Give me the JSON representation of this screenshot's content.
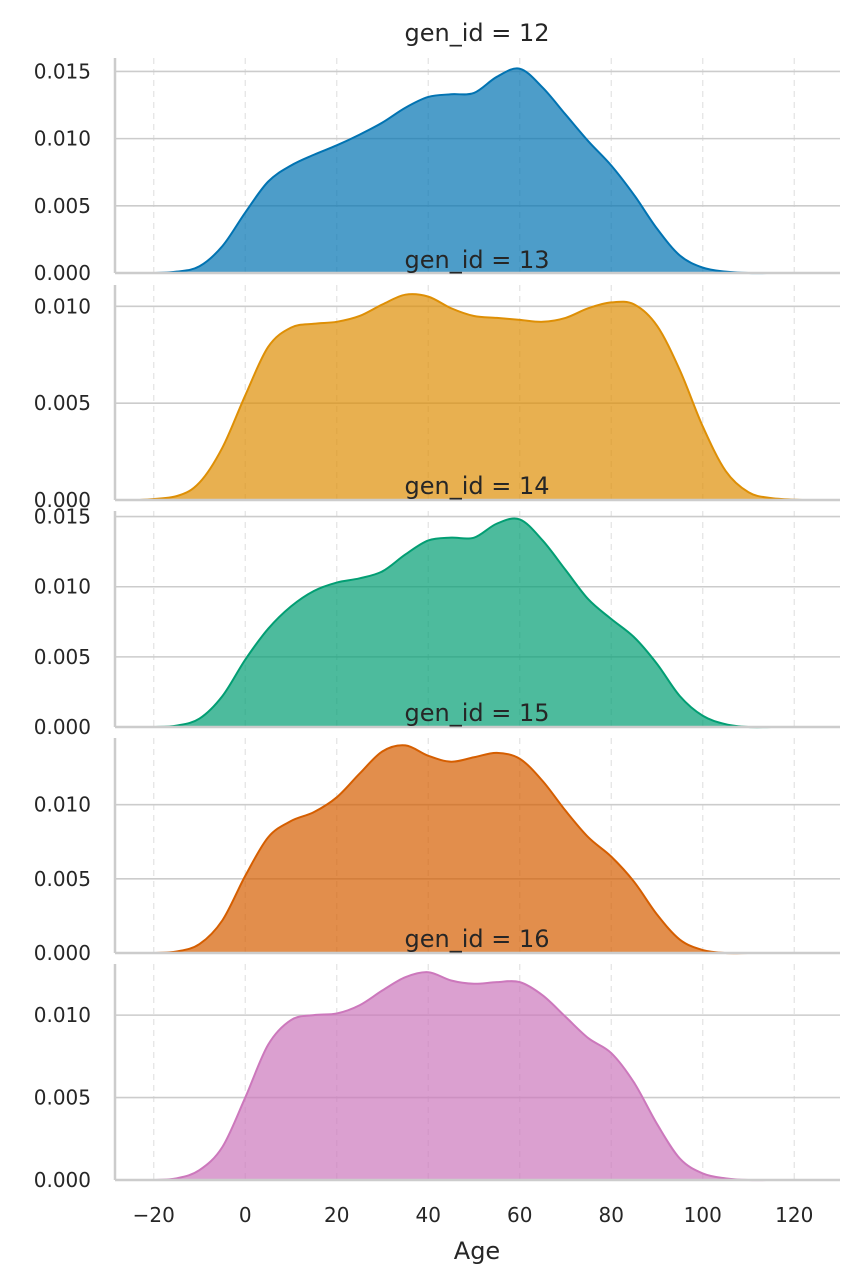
{
  "chart_data": {
    "type": "area",
    "xlabel": "Age",
    "ylabel": "",
    "xlim": [
      -30,
      130
    ],
    "x_ticks": [
      -20,
      0,
      20,
      40,
      60,
      80,
      100,
      120
    ],
    "x_tick_labels": [
      "−20",
      "0",
      "20",
      "40",
      "60",
      "80",
      "100",
      "120"
    ],
    "grid": "y-major solid, x dashed",
    "panels": [
      {
        "title": "gen_id = 12",
        "color": "#0173b2",
        "ylim": [
          0,
          0.016
        ],
        "y_ticks": [
          0,
          0.005,
          0.01,
          0.015
        ],
        "y_tick_labels": [
          "0.000",
          "0.005",
          "0.010",
          "0.015"
        ],
        "x": [
          -20,
          -15,
          -10,
          -5,
          0,
          5,
          10,
          15,
          20,
          25,
          30,
          35,
          40,
          45,
          50,
          55,
          60,
          65,
          70,
          75,
          80,
          85,
          90,
          95,
          100,
          105,
          110,
          115
        ],
        "y": [
          0,
          0.0001,
          0.0005,
          0.002,
          0.0045,
          0.0068,
          0.008,
          0.0088,
          0.0095,
          0.0103,
          0.0112,
          0.0123,
          0.0131,
          0.0133,
          0.0134,
          0.0146,
          0.0152,
          0.0138,
          0.0118,
          0.0098,
          0.008,
          0.0058,
          0.0033,
          0.0013,
          0.0004,
          0.0001,
          0,
          0
        ]
      },
      {
        "title": "gen_id = 13",
        "color": "#de8f05",
        "ylim": [
          0,
          0.0111
        ],
        "y_ticks": [
          0,
          0.005,
          0.01
        ],
        "y_tick_labels": [
          "0.000",
          "0.005",
          "0.010"
        ],
        "x": [
          -23,
          -15,
          -10,
          -5,
          0,
          5,
          10,
          15,
          20,
          25,
          30,
          35,
          40,
          45,
          50,
          55,
          60,
          65,
          70,
          75,
          80,
          85,
          90,
          95,
          100,
          105,
          110,
          115,
          122
        ],
        "y": [
          0,
          0.0002,
          0.0009,
          0.0027,
          0.0054,
          0.0079,
          0.0089,
          0.0091,
          0.0092,
          0.0095,
          0.0101,
          0.0106,
          0.0105,
          0.0099,
          0.0095,
          0.0094,
          0.0093,
          0.0092,
          0.0094,
          0.0099,
          0.0102,
          0.0101,
          0.009,
          0.0067,
          0.0038,
          0.0015,
          0.0004,
          0.0001,
          0
        ]
      },
      {
        "title": "gen_id = 14",
        "color": "#029e73",
        "ylim": [
          0,
          0.0154
        ],
        "y_ticks": [
          0,
          0.005,
          0.01,
          0.015
        ],
        "y_tick_labels": [
          "0.000",
          "0.005",
          "0.010",
          "0.015"
        ],
        "x": [
          -20,
          -15,
          -10,
          -5,
          0,
          5,
          10,
          15,
          20,
          25,
          30,
          35,
          40,
          45,
          50,
          55,
          60,
          65,
          70,
          75,
          80,
          85,
          90,
          95,
          100,
          105,
          110,
          115
        ],
        "y": [
          0,
          0.0001,
          0.0006,
          0.0022,
          0.0048,
          0.007,
          0.0086,
          0.0097,
          0.0103,
          0.0106,
          0.0111,
          0.0123,
          0.0133,
          0.0135,
          0.0135,
          0.0145,
          0.0148,
          0.0133,
          0.0112,
          0.0091,
          0.0077,
          0.0064,
          0.0045,
          0.0022,
          0.0008,
          0.0002,
          0,
          0
        ]
      },
      {
        "title": "gen_id = 15",
        "color": "#d55e00",
        "ylim": [
          0,
          0.0145
        ],
        "y_ticks": [
          0,
          0.005,
          0.01
        ],
        "y_tick_labels": [
          "0.000",
          "0.005",
          "0.010"
        ],
        "x": [
          -20,
          -15,
          -10,
          -5,
          0,
          5,
          10,
          15,
          20,
          25,
          30,
          35,
          40,
          45,
          50,
          55,
          60,
          65,
          70,
          75,
          80,
          85,
          90,
          95,
          100,
          105,
          110,
          115
        ],
        "y": [
          0,
          0.0001,
          0.0006,
          0.0022,
          0.0052,
          0.0078,
          0.0089,
          0.0095,
          0.0105,
          0.0121,
          0.0136,
          0.014,
          0.0133,
          0.0129,
          0.0132,
          0.0135,
          0.0131,
          0.0116,
          0.0096,
          0.0078,
          0.0065,
          0.0048,
          0.0026,
          0.0009,
          0.0002,
          0,
          0,
          0
        ]
      },
      {
        "title": "gen_id = 16",
        "color": "#cc78bc",
        "ylim": [
          0,
          0.0131
        ],
        "y_ticks": [
          0,
          0.005,
          0.01
        ],
        "y_tick_labels": [
          "0.000",
          "0.005",
          "0.010"
        ],
        "x": [
          -20,
          -15,
          -10,
          -5,
          0,
          5,
          10,
          15,
          20,
          25,
          30,
          35,
          40,
          45,
          50,
          55,
          60,
          65,
          70,
          75,
          80,
          85,
          90,
          95,
          100,
          105,
          110,
          115
        ],
        "y": [
          0,
          0.0001,
          0.0006,
          0.002,
          0.005,
          0.0082,
          0.0097,
          0.01,
          0.0101,
          0.0106,
          0.0115,
          0.0123,
          0.0126,
          0.0121,
          0.0119,
          0.012,
          0.012,
          0.0112,
          0.0099,
          0.0086,
          0.0077,
          0.0059,
          0.0034,
          0.0013,
          0.0004,
          0.0001,
          0,
          0
        ]
      }
    ]
  }
}
